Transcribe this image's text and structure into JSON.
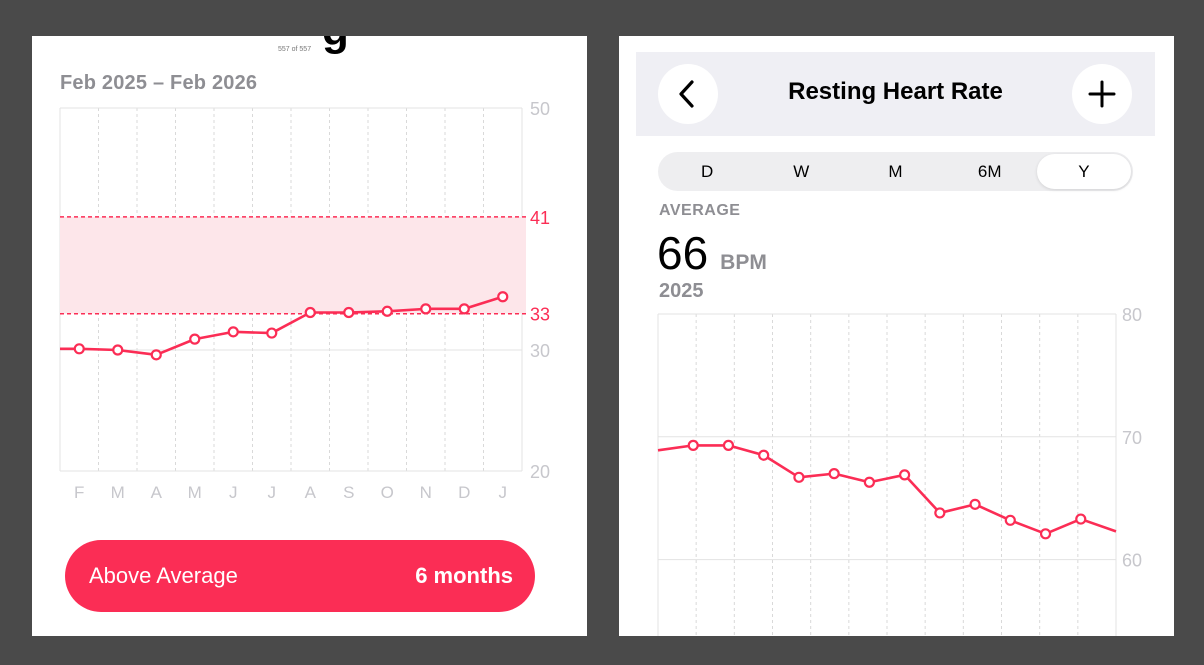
{
  "left": {
    "cutoff_text": "557 of 557",
    "cutoff_glyph": "g",
    "date_range": "Feb 2025 – Feb 2026",
    "chart_data": {
      "type": "line",
      "categories": [
        "F",
        "M",
        "A",
        "M",
        "J",
        "J",
        "A",
        "S",
        "O",
        "N",
        "D",
        "J"
      ],
      "values": [
        30.1,
        30.0,
        29.6,
        30.9,
        31.5,
        31.4,
        33.1,
        33.1,
        33.2,
        33.4,
        33.4,
        34.4
      ],
      "ylim": [
        20,
        50
      ],
      "y_ticks": [
        "20",
        "30",
        "50"
      ],
      "average_band": {
        "low": 33,
        "high": 41,
        "low_label": "33",
        "high_label": "41"
      },
      "grid": true
    },
    "summary": {
      "label": "Above Average",
      "value": "6 months"
    },
    "colors": {
      "accent": "#fb2d55",
      "band": "#fde6ea",
      "grid": "#e3e3e3",
      "tick": "#c7c7cc"
    }
  },
  "right": {
    "title": "Resting Heart Rate",
    "back_icon": "chevron-left-icon",
    "add_icon": "plus-icon",
    "segments": [
      "D",
      "W",
      "M",
      "6M",
      "Y"
    ],
    "active_segment": "Y",
    "average_label": "AVERAGE",
    "average_value": "66",
    "average_unit": "BPM",
    "year": "2025",
    "chart_data": {
      "type": "line",
      "values": [
        68.9,
        69.3,
        69.3,
        68.5,
        66.7,
        67.0,
        66.3,
        66.9,
        63.8,
        64.5,
        63.2,
        62.1,
        63.3,
        62.3
      ],
      "ylim": [
        55,
        80
      ],
      "y_ticks": [
        "60",
        "70",
        "80"
      ],
      "grid": true
    }
  }
}
